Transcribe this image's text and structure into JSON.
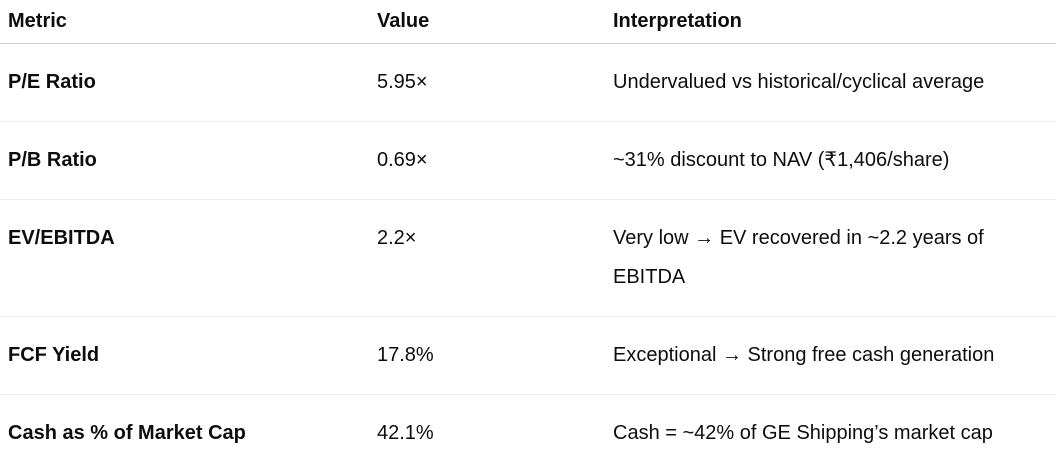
{
  "colors": {
    "text": "#0d0d0d",
    "header_border": "#d2d2d2",
    "row_border": "#ececec",
    "background": "#ffffff"
  },
  "table": {
    "columns": [
      {
        "label": "Metric"
      },
      {
        "label": "Value"
      },
      {
        "label": "Interpretation"
      }
    ],
    "rows": [
      {
        "metric": "P/E Ratio",
        "value": "5.95×",
        "interpretation": "Undervalued vs historical/cyclical average"
      },
      {
        "metric": "P/B Ratio",
        "value": "0.69×",
        "interpretation": "~31% discount to NAV (₹1,406/share)"
      },
      {
        "metric": "EV/EBITDA",
        "value": "2.2×",
        "interpretation": "Very low → EV recovered in ~2.2 years of EBITDA"
      },
      {
        "metric": "FCF Yield",
        "value": "17.8%",
        "interpretation": "Exceptional → Strong free cash generation"
      },
      {
        "metric": "Cash as % of Market Cap",
        "value": "42.1%",
        "interpretation": "Cash = ~42% of GE Shipping’s market cap"
      }
    ]
  }
}
